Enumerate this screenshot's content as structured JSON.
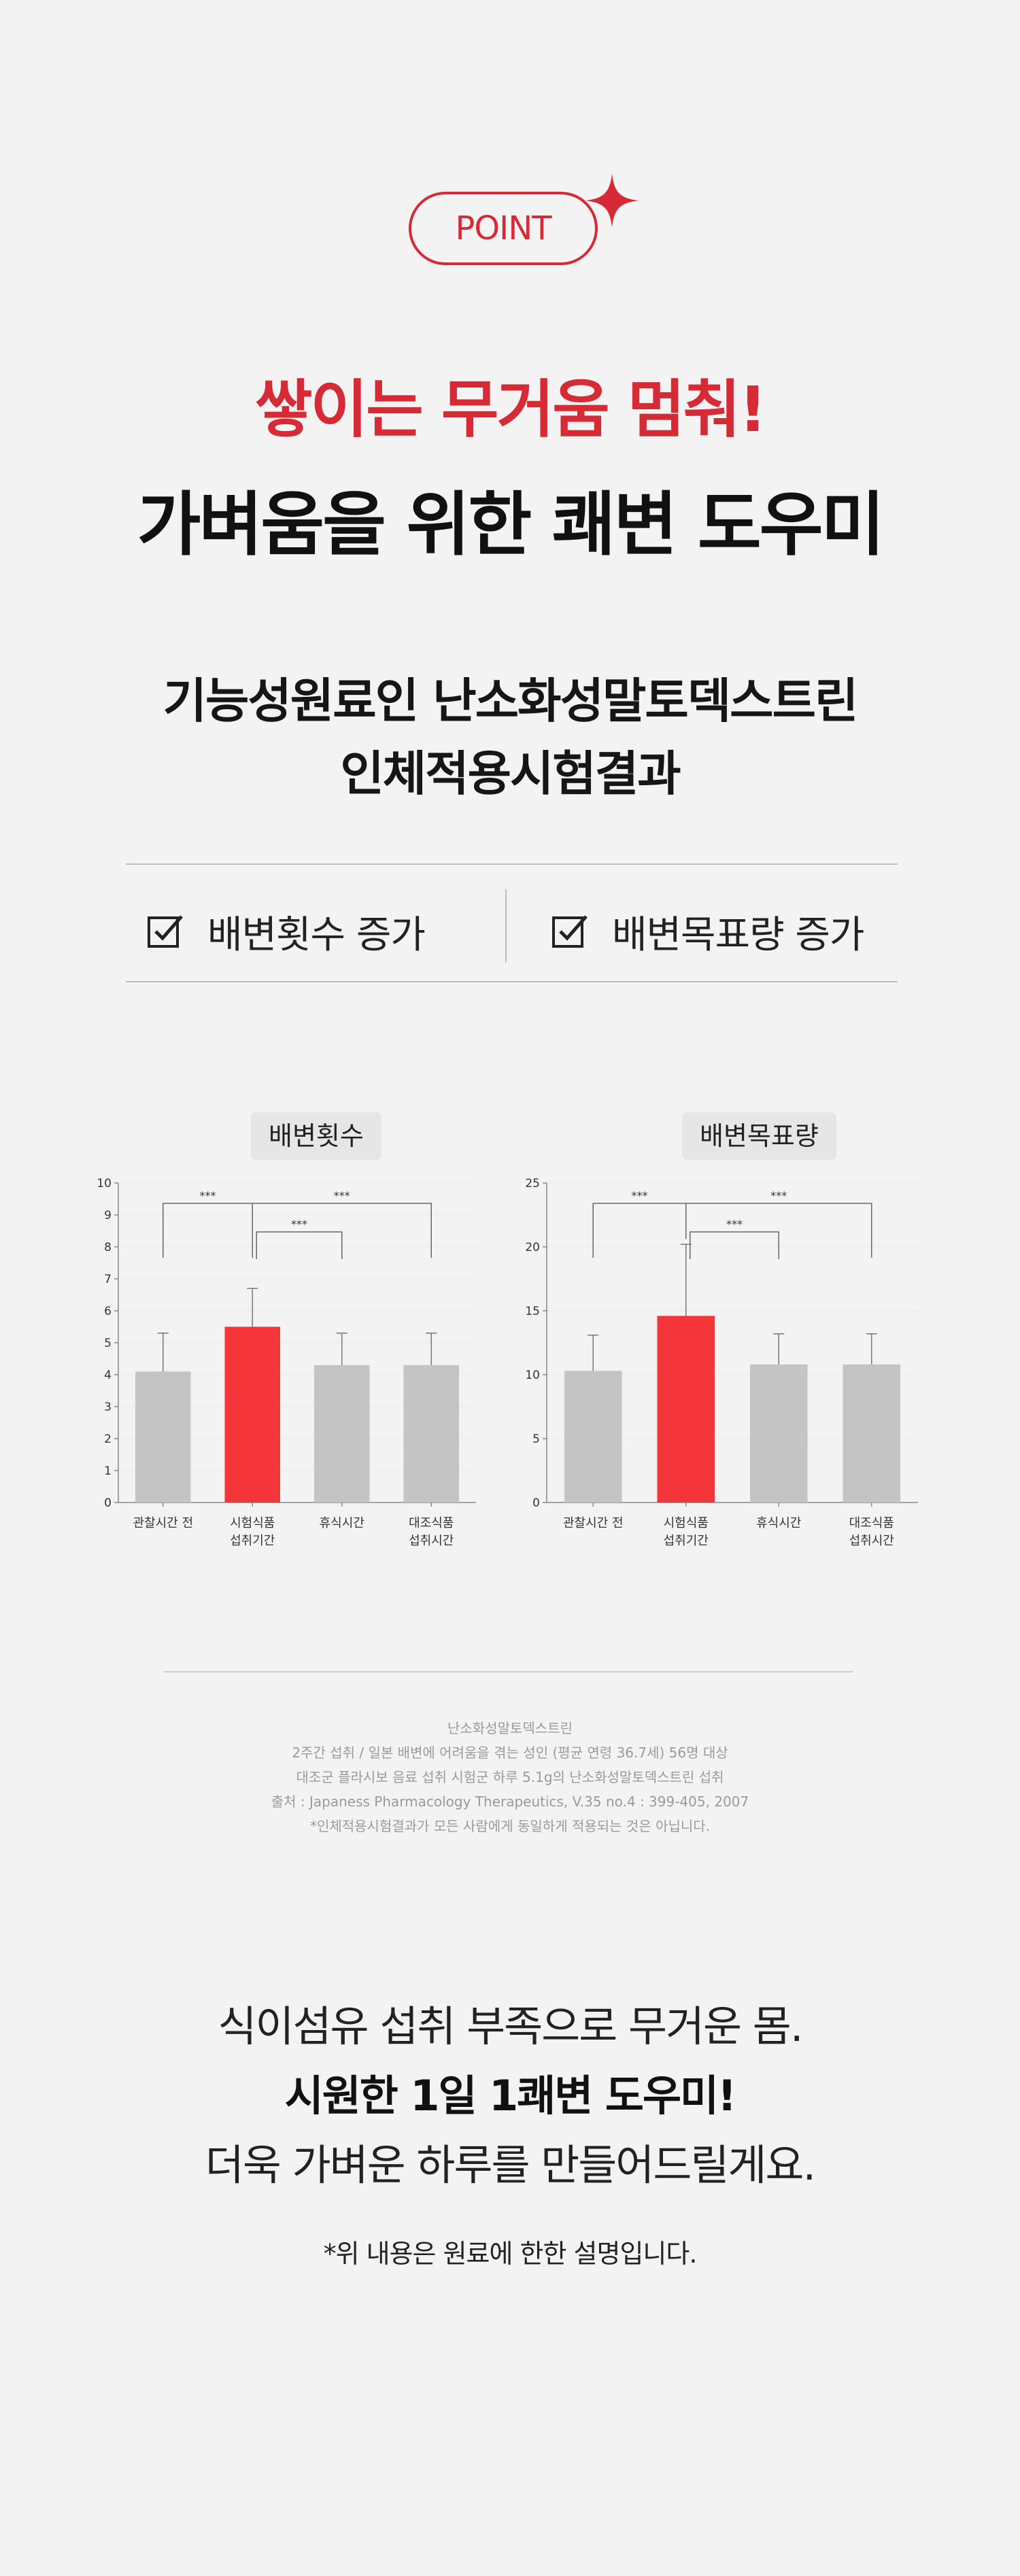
{
  "badge": {
    "label": "POINT",
    "color": "#d62a36"
  },
  "headline": {
    "line1": "쌓이는 무거움 멈춰!",
    "line2": "가벼움을 위한 쾌변 도우미"
  },
  "subheadline": {
    "line1": "기능성원료인 난소화성말토덱스트린",
    "line2": "인체적용시험결과"
  },
  "checks": [
    {
      "icon": "checkbox-icon",
      "label": "배변횟수 증가"
    },
    {
      "icon": "checkbox-icon",
      "label": "배변목표량 증가"
    }
  ],
  "chart_data": [
    {
      "type": "bar",
      "title": "배변횟수",
      "categories": [
        [
          "관찰시간 전"
        ],
        [
          "시험식품",
          "섭취기간"
        ],
        [
          "휴식시간"
        ],
        [
          "대조식품",
          "섭취시간"
        ]
      ],
      "values": [
        4.1,
        5.5,
        4.3,
        4.3
      ],
      "errors": [
        1.2,
        1.2,
        1.0,
        1.0
      ],
      "highlight_index": 1,
      "colors": {
        "bar": "#c4c4c4",
        "highlight": "#f3363a",
        "axis": "#888888",
        "grid": "#e8e8e8"
      },
      "ylim": [
        0,
        10
      ],
      "yticks": [
        0,
        1,
        2,
        3,
        4,
        5,
        6,
        7,
        8,
        9,
        10
      ],
      "significance": [
        {
          "from": 0,
          "to": 1,
          "label": "***",
          "level": 1
        },
        {
          "from": 1,
          "to": 3,
          "label": "***",
          "level": 1
        },
        {
          "from": 1,
          "to": 2,
          "label": "***",
          "level": 2
        }
      ]
    },
    {
      "type": "bar",
      "title": "배변목표량",
      "categories": [
        [
          "관찰시간 전"
        ],
        [
          "시험식품",
          "섭취기간"
        ],
        [
          "휴식시간"
        ],
        [
          "대조식품",
          "섭취시간"
        ]
      ],
      "values": [
        10.3,
        14.6,
        10.8,
        10.8
      ],
      "errors": [
        2.8,
        5.6,
        2.4,
        2.4
      ],
      "highlight_index": 1,
      "colors": {
        "bar": "#c4c4c4",
        "highlight": "#f3363a",
        "axis": "#888888",
        "grid": "#e8e8e8"
      },
      "ylim": [
        0,
        25
      ],
      "yticks": [
        0,
        5,
        10,
        15,
        20,
        25
      ],
      "significance": [
        {
          "from": 0,
          "to": 1,
          "label": "***",
          "level": 1
        },
        {
          "from": 1,
          "to": 3,
          "label": "***",
          "level": 1
        },
        {
          "from": 1,
          "to": 2,
          "label": "***",
          "level": 2
        }
      ]
    }
  ],
  "notes": [
    "난소화성말토덱스트린",
    "2주간 섭취 / 일본 배변에 어려움을 겪는 성인 (평균 연령 36.7세) 56명 대상",
    "대조군 플라시보 음료 섭취 시험군 하루 5.1g의 난소화성말토덱스트린 섭취",
    "출처 : Japaness Pharmacology Therapeutics, V.35 no.4 : 399-405, 2007",
    "*인체적용시험결과가 모든 사람에게 동일하게 적용되는 것은 아닙니다."
  ],
  "closing": {
    "line1": "식이섬유 섭취 부족으로 무거운 몸.",
    "line2": "시원한 1일 1쾌변 도우미!",
    "line3": "더욱 가벼운 하루를 만들어드릴게요."
  },
  "disclaimer": "*위 내용은 원료에 한한 설명입니다."
}
